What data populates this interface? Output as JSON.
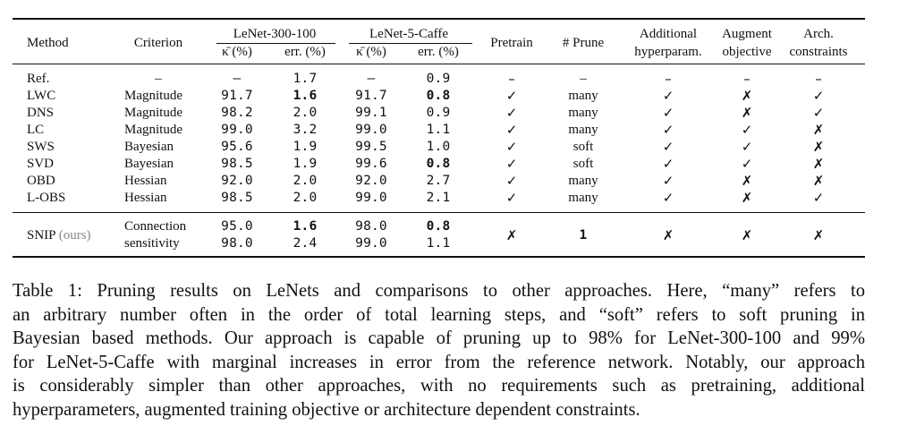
{
  "table": {
    "headers": {
      "method": "Method",
      "criterion": "Criterion",
      "lenet300": "LeNet-300-100",
      "lenet5": "LeNet-5-Caffe",
      "kappa": "κ̄ (%)",
      "err": "err. (%)",
      "pretrain": "Pretrain",
      "prune": "# Prune",
      "additional_1": "Additional",
      "additional_2": "hyperparam.",
      "augment_1": "Augment",
      "augment_2": "objective",
      "arch_1": "Arch.",
      "arch_2": "constraints"
    },
    "rows": [
      {
        "method": "Ref.",
        "criterion": "–",
        "k300": "–",
        "e300": "1.7",
        "k5": "–",
        "e5": "0.9",
        "pretrain": "–",
        "prune": "–",
        "additional": "–",
        "augment": "–",
        "arch": "–"
      },
      {
        "method": "LWC",
        "criterion": "Magnitude",
        "k300": "91.7",
        "e300": "1.6",
        "k5": "91.7",
        "e5": "0.8",
        "pretrain": "✓",
        "prune": "many",
        "additional": "✓",
        "augment": "✗",
        "arch": "✓"
      },
      {
        "method": "DNS",
        "criterion": "Magnitude",
        "k300": "98.2",
        "e300": "2.0",
        "k5": "99.1",
        "e5": "0.9",
        "pretrain": "✓",
        "prune": "many",
        "additional": "✓",
        "augment": "✗",
        "arch": "✓"
      },
      {
        "method": "LC",
        "criterion": "Magnitude",
        "k300": "99.0",
        "e300": "3.2",
        "k5": "99.0",
        "e5": "1.1",
        "pretrain": "✓",
        "prune": "many",
        "additional": "✓",
        "augment": "✓",
        "arch": "✗"
      },
      {
        "method": "SWS",
        "criterion": "Bayesian",
        "k300": "95.6",
        "e300": "1.9",
        "k5": "99.5",
        "e5": "1.0",
        "pretrain": "✓",
        "prune": "soft",
        "additional": "✓",
        "augment": "✓",
        "arch": "✗"
      },
      {
        "method": "SVD",
        "criterion": "Bayesian",
        "k300": "98.5",
        "e300": "1.9",
        "k5": "99.6",
        "e5": "0.8",
        "pretrain": "✓",
        "prune": "soft",
        "additional": "✓",
        "augment": "✓",
        "arch": "✗"
      },
      {
        "method": "OBD",
        "criterion": "Hessian",
        "k300": "92.0",
        "e300": "2.0",
        "k5": "92.0",
        "e5": "2.7",
        "pretrain": "✓",
        "prune": "many",
        "additional": "✓",
        "augment": "✗",
        "arch": "✗"
      },
      {
        "method": "L-OBS",
        "criterion": "Hessian",
        "k300": "98.5",
        "e300": "2.0",
        "k5": "99.0",
        "e5": "2.1",
        "pretrain": "✓",
        "prune": "many",
        "additional": "✓",
        "augment": "✗",
        "arch": "✓"
      }
    ],
    "snip": {
      "method": "SNIP",
      "method_note": "(ours)",
      "criterion_1": "Connection",
      "criterion_2": "sensitivity",
      "k300_1": "95.0",
      "e300_1": "1.6",
      "k5_1": "98.0",
      "e5_1": "0.8",
      "k300_2": "98.0",
      "e300_2": "2.4",
      "k5_2": "99.0",
      "e5_2": "1.1",
      "pretrain": "✗",
      "prune": "1",
      "additional": "✗",
      "augment": "✗",
      "arch": "✗"
    }
  },
  "caption": {
    "lines": [
      "Table 1: Pruning results on LeNets and comparisons to other approaches. Here, “many” refers to",
      "an arbitrary number often in the order of total learning steps, and “soft” refers to soft pruning in",
      "Bayesian based methods. Our approach is capable of pruning up to 98% for LeNet-300-100 and 99%",
      "for LeNet-5-Caffe with marginal increases in error from the reference network. Notably, our approach",
      "is considerably simpler than other approaches, with no requirements such as pretraining, additional",
      "hyperparameters, augmented training objective or architecture dependent constraints."
    ]
  }
}
